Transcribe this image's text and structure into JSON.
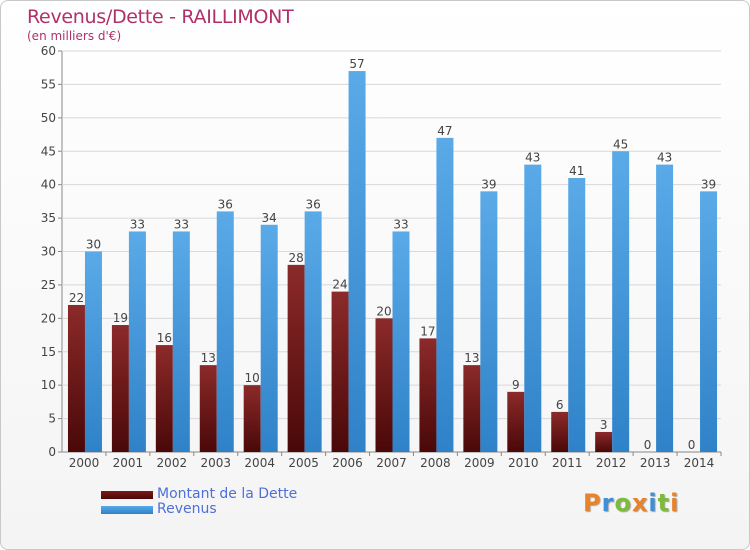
{
  "title": "Revenus/Dette - RAILLIMONT",
  "subtitle": "(en milliers d'€)",
  "legend": [
    {
      "label": "Montant de la Dette",
      "color": "#7a1a1a"
    },
    {
      "label": "Revenus",
      "color": "#4a9de0"
    }
  ],
  "logo_text": "Proxiti",
  "chart_data": {
    "type": "bar",
    "title": "Revenus/Dette - RAILLIMONT",
    "ylabel": "",
    "xlabel": "",
    "ylim": [
      0,
      60
    ],
    "yticks": [
      0,
      5,
      10,
      15,
      20,
      25,
      30,
      35,
      40,
      45,
      50,
      55,
      60
    ],
    "grid": true,
    "categories": [
      "2000",
      "2001",
      "2002",
      "2003",
      "2004",
      "2005",
      "2006",
      "2007",
      "2008",
      "2009",
      "2010",
      "2011",
      "2012",
      "2013",
      "2014"
    ],
    "series": [
      {
        "name": "Montant de la Dette",
        "color": "#7a1a1a",
        "values": [
          22,
          19,
          16,
          13,
          10,
          28,
          24,
          20,
          17,
          13,
          9,
          6,
          3,
          0,
          0
        ]
      },
      {
        "name": "Revenus",
        "color": "#4a9de0",
        "values": [
          30,
          33,
          33,
          36,
          34,
          36,
          57,
          33,
          47,
          39,
          43,
          41,
          45,
          43,
          39
        ]
      }
    ]
  }
}
